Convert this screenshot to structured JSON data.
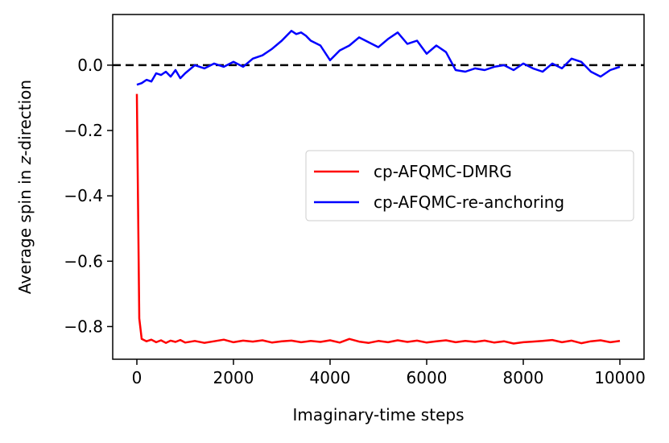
{
  "chart_data": {
    "type": "line",
    "xlabel": "Imaginary-time steps",
    "ylabel_prefix": "Average spin in ",
    "ylabel_italic": "z",
    "ylabel_suffix": "-direction",
    "xlim": [
      -500,
      10500
    ],
    "ylim": [
      -0.9,
      0.155
    ],
    "x_ticks": [
      0,
      2000,
      4000,
      6000,
      8000,
      10000
    ],
    "x_tick_labels": [
      "0",
      "2000",
      "4000",
      "6000",
      "8000",
      "10000"
    ],
    "y_ticks": [
      0.0,
      -0.2,
      -0.4,
      -0.6,
      -0.8
    ],
    "y_tick_labels": [
      "0.0",
      "−0.2",
      "−0.4",
      "−0.6",
      "−0.8"
    ],
    "grid": false,
    "legend_position": "center-right",
    "reference_line": {
      "y": 0.0,
      "style": "dashed",
      "color": "#000000"
    },
    "series": [
      {
        "name": "cp-AFQMC-DMRG",
        "color": "#ff0000",
        "x": [
          0,
          50,
          100,
          200,
          300,
          400,
          500,
          600,
          700,
          800,
          900,
          1000,
          1200,
          1400,
          1600,
          1800,
          2000,
          2200,
          2400,
          2600,
          2800,
          3000,
          3200,
          3400,
          3600,
          3800,
          4000,
          4200,
          4400,
          4600,
          4800,
          5000,
          5200,
          5400,
          5600,
          5800,
          6000,
          6200,
          6400,
          6600,
          6800,
          7000,
          7200,
          7400,
          7600,
          7800,
          8000,
          8200,
          8400,
          8600,
          8800,
          9000,
          9200,
          9400,
          9600,
          9800,
          10000
        ],
        "values": [
          -0.088,
          -0.775,
          -0.838,
          -0.845,
          -0.84,
          -0.848,
          -0.842,
          -0.85,
          -0.843,
          -0.847,
          -0.841,
          -0.849,
          -0.844,
          -0.85,
          -0.845,
          -0.84,
          -0.848,
          -0.843,
          -0.846,
          -0.842,
          -0.849,
          -0.845,
          -0.843,
          -0.848,
          -0.844,
          -0.847,
          -0.842,
          -0.849,
          -0.838,
          -0.846,
          -0.85,
          -0.844,
          -0.848,
          -0.842,
          -0.847,
          -0.843,
          -0.849,
          -0.845,
          -0.842,
          -0.848,
          -0.844,
          -0.847,
          -0.843,
          -0.849,
          -0.845,
          -0.852,
          -0.848,
          -0.846,
          -0.844,
          -0.841,
          -0.848,
          -0.843,
          -0.851,
          -0.845,
          -0.842,
          -0.848,
          -0.844
        ]
      },
      {
        "name": "cp-AFQMC-re-anchoring",
        "color": "#0000ff",
        "x": [
          0,
          100,
          200,
          300,
          400,
          500,
          600,
          700,
          800,
          900,
          1000,
          1200,
          1400,
          1600,
          1800,
          2000,
          2200,
          2400,
          2600,
          2800,
          3000,
          3100,
          3200,
          3300,
          3400,
          3500,
          3600,
          3800,
          4000,
          4200,
          4400,
          4600,
          4800,
          5000,
          5200,
          5400,
          5600,
          5800,
          6000,
          6200,
          6400,
          6600,
          6800,
          7000,
          7200,
          7400,
          7600,
          7800,
          8000,
          8200,
          8400,
          8600,
          8800,
          9000,
          9200,
          9400,
          9600,
          9800,
          10000
        ],
        "values": [
          -0.06,
          -0.055,
          -0.045,
          -0.05,
          -0.025,
          -0.03,
          -0.02,
          -0.035,
          -0.015,
          -0.04,
          -0.025,
          0.0,
          -0.01,
          0.005,
          -0.005,
          0.01,
          -0.005,
          0.02,
          0.03,
          0.05,
          0.075,
          0.09,
          0.105,
          0.095,
          0.1,
          0.09,
          0.075,
          0.06,
          0.015,
          0.045,
          0.06,
          0.085,
          0.07,
          0.055,
          0.08,
          0.1,
          0.065,
          0.075,
          0.035,
          0.06,
          0.04,
          -0.015,
          -0.02,
          -0.01,
          -0.015,
          -0.005,
          0.0,
          -0.015,
          0.005,
          -0.01,
          -0.02,
          0.005,
          -0.01,
          0.02,
          0.01,
          -0.02,
          -0.035,
          -0.015,
          -0.005
        ]
      }
    ]
  }
}
